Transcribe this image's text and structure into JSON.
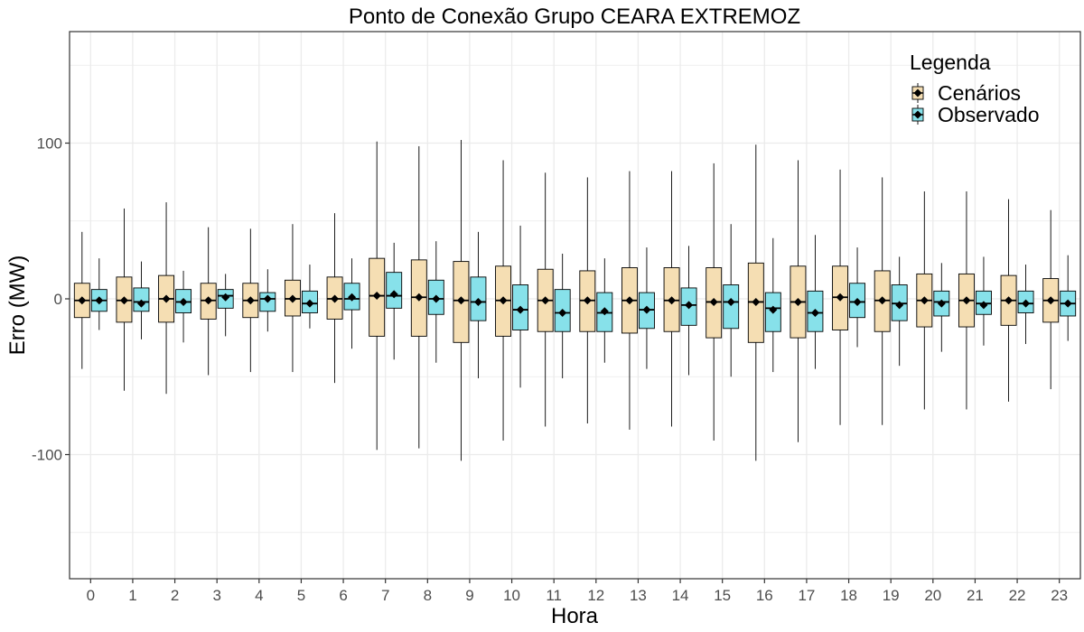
{
  "chart_data": {
    "type": "boxplot",
    "title": "Ponto de Conexão Grupo CEARA EXTREMOZ",
    "xlabel": "Hora",
    "ylabel": "Erro (MW)",
    "ylim": [
      -180,
      173
    ],
    "yticks": [
      -100,
      0,
      100
    ],
    "ytick_labels": [
      "-100",
      "0",
      "100"
    ],
    "grid": true,
    "legend": {
      "title": "Legenda",
      "position": "top-right"
    },
    "categories": [
      "0",
      "1",
      "2",
      "3",
      "4",
      "5",
      "6",
      "7",
      "8",
      "9",
      "10",
      "11",
      "12",
      "13",
      "14",
      "15",
      "16",
      "17",
      "18",
      "19",
      "20",
      "21",
      "22",
      "23"
    ],
    "series": [
      {
        "name": "Cenários",
        "color": "#f5deb3",
        "whisker_low": [
          -45,
          -59,
          -61,
          -49,
          -47,
          -47,
          -54,
          -97,
          -96,
          -104,
          -91,
          -82,
          -80,
          -84,
          -82,
          -91,
          -104,
          -92,
          -81,
          -81,
          -71,
          -71,
          -66,
          -58
        ],
        "q1": [
          -12,
          -15,
          -15,
          -13,
          -12,
          -11,
          -13,
          -24,
          -24,
          -28,
          -24,
          -21,
          -21,
          -22,
          -21,
          -25,
          -28,
          -25,
          -20,
          -21,
          -18,
          -18,
          -17,
          -15
        ],
        "median": [
          -1,
          -1,
          0,
          -1,
          -1,
          0,
          0,
          2,
          1,
          -1,
          -1,
          -1,
          -1,
          -1,
          -1,
          -2,
          -2,
          -2,
          1,
          -1,
          -1,
          -1,
          -1,
          -1
        ],
        "q3": [
          10,
          14,
          15,
          10,
          10,
          12,
          14,
          26,
          25,
          24,
          21,
          19,
          18,
          20,
          20,
          20,
          23,
          21,
          21,
          18,
          16,
          16,
          15,
          13
        ],
        "whisker_high": [
          43,
          58,
          62,
          46,
          45,
          48,
          55,
          101,
          98,
          102,
          89,
          81,
          78,
          82,
          82,
          87,
          99,
          89,
          83,
          78,
          69,
          69,
          64,
          57
        ],
        "mean": [
          -1,
          -1,
          0,
          -1,
          -1,
          0,
          0,
          2,
          1,
          -1,
          -1,
          -1,
          -1,
          -1,
          -1,
          -2,
          -2,
          -2,
          1,
          -1,
          -1,
          -1,
          -1,
          -1
        ]
      },
      {
        "name": "Observado",
        "color": "#87e1ea",
        "whisker_low": [
          -20,
          -26,
          -28,
          -24,
          -21,
          -19,
          -32,
          -39,
          -41,
          -51,
          -57,
          -51,
          -41,
          -45,
          -49,
          -50,
          -47,
          -45,
          -31,
          -43,
          -34,
          -30,
          -29,
          -27
        ],
        "q1": [
          -8,
          -8,
          -9,
          -6,
          -8,
          -9,
          -7,
          -6,
          -10,
          -14,
          -20,
          -21,
          -21,
          -19,
          -17,
          -19,
          -21,
          -21,
          -12,
          -14,
          -11,
          -10,
          -9,
          -11
        ],
        "median": [
          -1,
          -2,
          -2,
          2,
          0,
          -3,
          0,
          2,
          0,
          -2,
          -7,
          -9,
          -9,
          -7,
          -4,
          -2,
          -6,
          -9,
          -2,
          -3,
          -2,
          -3,
          -3,
          -3
        ],
        "q3": [
          6,
          7,
          6,
          6,
          4,
          5,
          10,
          17,
          12,
          14,
          9,
          6,
          4,
          4,
          7,
          9,
          4,
          5,
          10,
          9,
          5,
          5,
          5,
          5
        ],
        "whisker_high": [
          26,
          24,
          18,
          16,
          19,
          22,
          26,
          36,
          37,
          43,
          47,
          29,
          26,
          33,
          34,
          48,
          39,
          41,
          33,
          27,
          23,
          27,
          22,
          28
        ],
        "mean": [
          -1,
          -3,
          -2,
          1,
          0,
          -3,
          1,
          3,
          0,
          -2,
          -7,
          -9,
          -8,
          -7,
          -4,
          -2,
          -7,
          -9,
          -2,
          -4,
          -3,
          -4,
          -3,
          -3
        ]
      }
    ]
  }
}
